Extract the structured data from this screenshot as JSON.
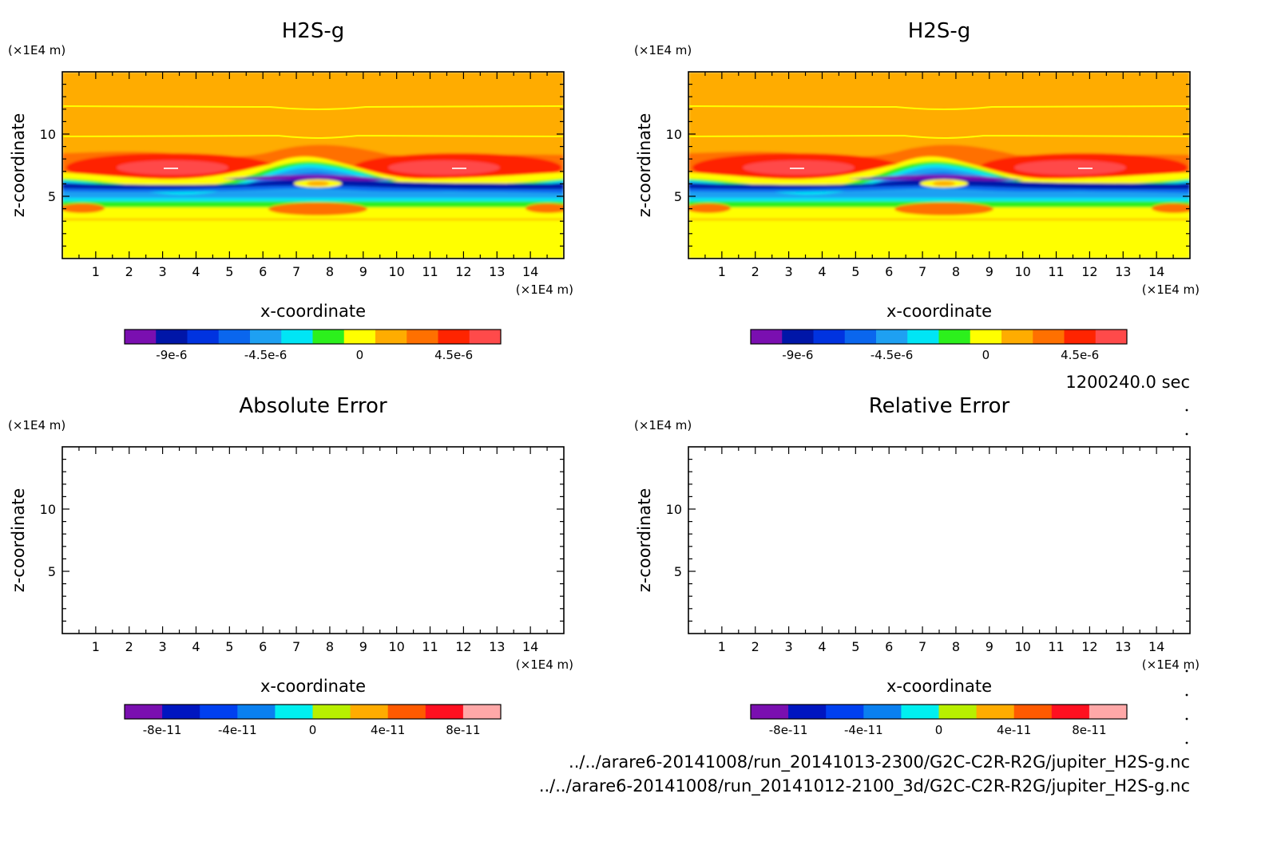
{
  "figure": {
    "time_label": "1200240.0 sec",
    "file_paths": [
      "../../arare6-20141008/run_20141013-2300/G2C-C2R-R2G/jupiter_H2S-g.nc",
      "../../arare6-20141008/run_20141012-2100_3d/G2C-C2R-R2G/jupiter_H2S-g.nc"
    ]
  },
  "chart_data": [
    {
      "type": "heatmap",
      "title": "H2S-g",
      "xlabel": "x-coordinate",
      "ylabel": "z-coordinate",
      "x_unit": "(×1E4 m)",
      "y_unit": "(×1E4 m)",
      "xlim": [
        0,
        15
      ],
      "ylim": [
        0,
        15
      ],
      "x_ticks": [
        1,
        2,
        3,
        4,
        5,
        6,
        7,
        8,
        9,
        10,
        11,
        12,
        13,
        14
      ],
      "y_ticks": [
        5,
        10
      ],
      "colorbar": {
        "colors": [
          "#7a0fb0",
          "#0016a8",
          "#0033e0",
          "#0a66ee",
          "#1ea0f2",
          "#00e5f5",
          "#2cf01c",
          "#ffff00",
          "#ffac00",
          "#ff7000",
          "#ff2400",
          "#ff4a4a"
        ],
        "tick_labels": [
          "-9e-6",
          "-4.5e-6",
          "0",
          "4.5e-6"
        ]
      }
    },
    {
      "type": "heatmap",
      "title": "H2S-g",
      "xlabel": "x-coordinate",
      "ylabel": "z-coordinate",
      "x_unit": "(×1E4 m)",
      "y_unit": "(×1E4 m)",
      "xlim": [
        0,
        15
      ],
      "ylim": [
        0,
        15
      ],
      "x_ticks": [
        1,
        2,
        3,
        4,
        5,
        6,
        7,
        8,
        9,
        10,
        11,
        12,
        13,
        14
      ],
      "y_ticks": [
        5,
        10
      ],
      "colorbar": {
        "colors": [
          "#7a0fb0",
          "#0016a8",
          "#0033e0",
          "#0a66ee",
          "#1ea0f2",
          "#00e5f5",
          "#2cf01c",
          "#ffff00",
          "#ffac00",
          "#ff7000",
          "#ff2400",
          "#ff4a4a"
        ],
        "tick_labels": [
          "-9e-6",
          "-4.5e-6",
          "0",
          "4.5e-6"
        ]
      }
    },
    {
      "type": "heatmap",
      "title": "Absolute Error",
      "xlabel": "x-coordinate",
      "ylabel": "z-coordinate",
      "x_unit": "(×1E4 m)",
      "y_unit": "(×1E4 m)",
      "xlim": [
        0,
        15
      ],
      "ylim": [
        0,
        15
      ],
      "x_ticks": [
        1,
        2,
        3,
        4,
        5,
        6,
        7,
        8,
        9,
        10,
        11,
        12,
        13,
        14
      ],
      "y_ticks": [
        5,
        10
      ],
      "colorbar": {
        "colors": [
          "#7a0fb0",
          "#0016c0",
          "#0040f0",
          "#0a80f0",
          "#00f0f0",
          "#b8f000",
          "#ffac00",
          "#ff5a00",
          "#ff1020",
          "#ffa8a8"
        ],
        "tick_labels": [
          "-8e-11",
          "-4e-11",
          "0",
          "4e-11",
          "8e-11"
        ]
      }
    },
    {
      "type": "heatmap",
      "title": "Relative Error",
      "xlabel": "x-coordinate",
      "ylabel": "z-coordinate",
      "x_unit": "(×1E4 m)",
      "y_unit": "(×1E4 m)",
      "xlim": [
        0,
        15
      ],
      "ylim": [
        0,
        15
      ],
      "x_ticks": [
        1,
        2,
        3,
        4,
        5,
        6,
        7,
        8,
        9,
        10,
        11,
        12,
        13,
        14
      ],
      "y_ticks": [
        5,
        10
      ],
      "colorbar": {
        "colors": [
          "#7a0fb0",
          "#0016c0",
          "#0040f0",
          "#0a80f0",
          "#00f0f0",
          "#b8f000",
          "#ffac00",
          "#ff5a00",
          "#ff1020",
          "#ffa8a8"
        ],
        "tick_labels": [
          "-8e-11",
          "-4e-11",
          "0",
          "4e-11",
          "8e-11"
        ]
      }
    }
  ]
}
